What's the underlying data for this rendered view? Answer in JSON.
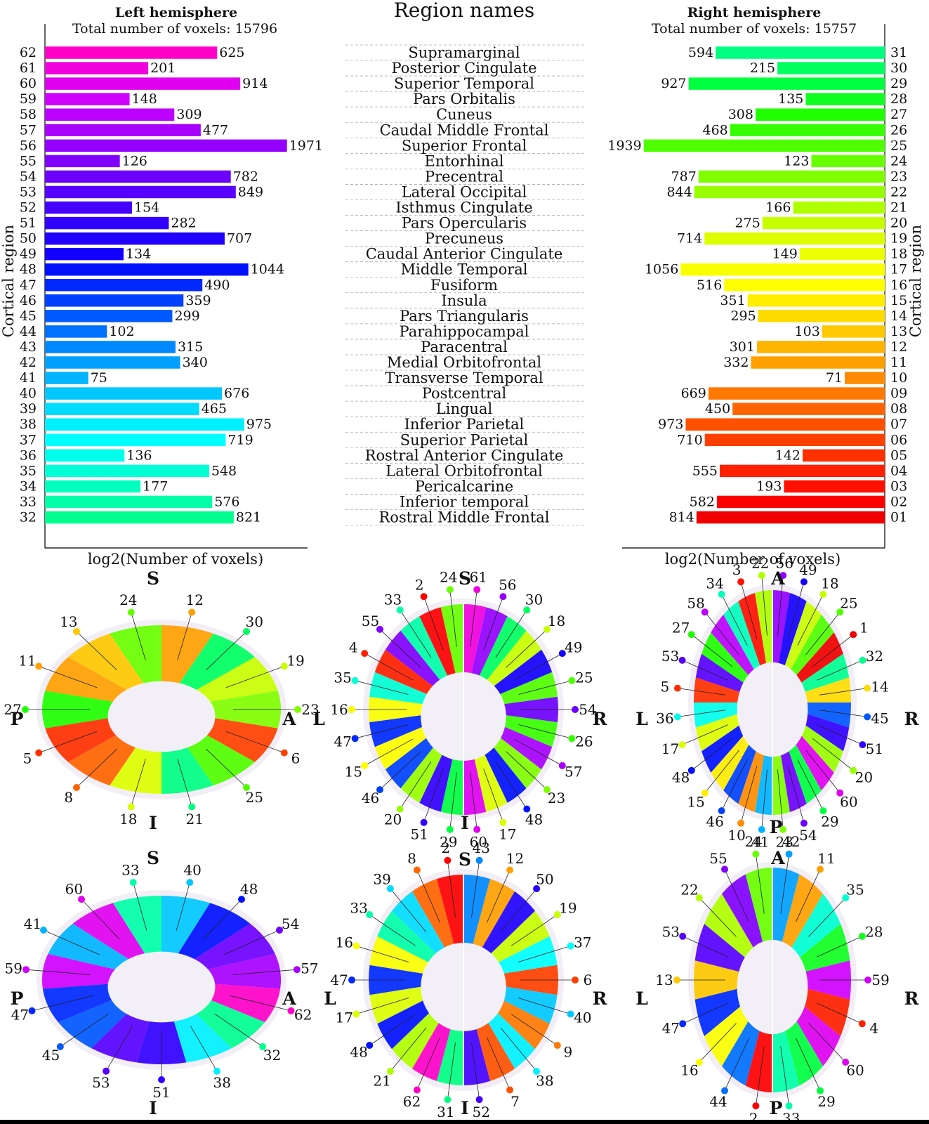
{
  "header": {
    "left_title": "Left hemisphere",
    "left_subtitle": "Total number of voxels: 15796",
    "middle_title": "Region names",
    "right_title": "Right hemisphere",
    "right_subtitle": "Total number of voxels: 15757"
  },
  "axes": {
    "left_y_label": "Cortical region",
    "right_y_label": "Cortical region",
    "left_x_label": "log2(Number of voxels)",
    "right_x_label": "log2(Number of voxels)"
  },
  "chart_data": [
    {
      "type": "bar",
      "orientation": "horizontal",
      "name": "Left hemisphere",
      "scale": "log2",
      "categories": [
        "62",
        "61",
        "60",
        "59",
        "58",
        "57",
        "56",
        "55",
        "54",
        "53",
        "52",
        "51",
        "50",
        "49",
        "48",
        "47",
        "46",
        "45",
        "44",
        "43",
        "42",
        "41",
        "40",
        "39",
        "38",
        "37",
        "36",
        "35",
        "34",
        "33",
        "32"
      ],
      "values": [
        625,
        201,
        914,
        148,
        309,
        477,
        1971,
        126,
        782,
        849,
        154,
        282,
        707,
        134,
        1044,
        490,
        359,
        299,
        102,
        315,
        340,
        75,
        676,
        465,
        975,
        719,
        136,
        548,
        177,
        576,
        821
      ],
      "colors": [
        "#ff00c8",
        "#f000dc",
        "#e000f0",
        "#d000ff",
        "#bc00ff",
        "#a800ff",
        "#9400ff",
        "#8000ff",
        "#6c00ff",
        "#5800ff",
        "#4400ff",
        "#3000ff",
        "#2000ff",
        "#1400ff",
        "#0010ff",
        "#0028ff",
        "#0040ff",
        "#0058ff",
        "#0070ff",
        "#0088ff",
        "#00a0ff",
        "#00b4ff",
        "#00c8ff",
        "#00dcff",
        "#00f0ff",
        "#00ffff",
        "#00ffea",
        "#00ffd4",
        "#00ffbe",
        "#00ffa8",
        "#00ff90"
      ]
    },
    {
      "type": "bar",
      "orientation": "horizontal",
      "name": "Right hemisphere",
      "scale": "log2",
      "categories": [
        "31",
        "30",
        "29",
        "28",
        "27",
        "26",
        "25",
        "24",
        "23",
        "22",
        "21",
        "20",
        "19",
        "18",
        "17",
        "16",
        "15",
        "14",
        "13",
        "12",
        "11",
        "10",
        "09",
        "08",
        "07",
        "06",
        "05",
        "04",
        "03",
        "02",
        "01"
      ],
      "values": [
        594,
        215,
        927,
        135,
        308,
        468,
        1939,
        123,
        787,
        844,
        166,
        275,
        714,
        149,
        1056,
        516,
        351,
        295,
        103,
        301,
        332,
        71,
        669,
        450,
        973,
        710,
        142,
        555,
        193,
        582,
        814
      ],
      "colors": [
        "#00ff80",
        "#00ff60",
        "#00ff40",
        "#10ff20",
        "#20ff00",
        "#38ff00",
        "#50ff00",
        "#68ff00",
        "#80ff00",
        "#98ff00",
        "#b0ff00",
        "#c8ff00",
        "#dcff00",
        "#eeff00",
        "#faff00",
        "#ffff00",
        "#ffee00",
        "#ffdc00",
        "#ffc800",
        "#ffb400",
        "#ffa000",
        "#ff8c00",
        "#ff7800",
        "#ff6400",
        "#ff5000",
        "#ff4000",
        "#ff3000",
        "#ff2000",
        "#ff1000",
        "#ff0000",
        "#f00000"
      ]
    }
  ],
  "region_names": [
    "Supramarginal",
    "Posterior Cingulate",
    "Superior Temporal",
    "Pars Orbitalis",
    "Cuneus",
    "Caudal Middle Frontal",
    "Superior Frontal",
    "Entorhinal",
    "Precentral",
    "Lateral Occipital",
    "Isthmus Cingulate",
    "Pars Opercularis",
    "Precuneus",
    "Caudal Anterior Cingulate",
    "Middle Temporal",
    "Fusiform",
    "Insula",
    "Pars Triangularis",
    "Parahippocampal",
    "Paracentral",
    "Medial Orbitofrontal",
    "Transverse Temporal",
    "Postcentral",
    "Lingual",
    "Inferior Parietal",
    "Superior Parietal",
    "Rostral Anterior Cingulate",
    "Lateral Orbitofrontal",
    "Pericalcarine",
    "Inferior temporal",
    "Rostral Middle Frontal"
  ],
  "brain_views": [
    {
      "directions": {
        "S": "S",
        "I": "I",
        "P": "P",
        "A": "A"
      },
      "labels": [
        "12",
        "30",
        "19",
        "23",
        "6",
        "25",
        "21",
        "18",
        "8",
        "5",
        "27",
        "11",
        "13",
        "24"
      ],
      "colors": [
        "#ffa000",
        "#00ff60",
        "#c8ff00",
        "#80ff00",
        "#ff4000",
        "#50ff00",
        "#00ff80",
        "#dcff00",
        "#ff6400",
        "#ff3000",
        "#20ff00",
        "#ffa000",
        "#ffc800",
        "#68ff00"
      ]
    },
    {
      "directions": {
        "S": "S",
        "I": "I",
        "L": "L",
        "R": "R"
      },
      "labels": [
        "61",
        "56",
        "30",
        "18",
        "49",
        "25",
        "54",
        "26",
        "57",
        "23",
        "48",
        "17",
        "60",
        "29",
        "51",
        "20",
        "46",
        "15",
        "47",
        "16",
        "35",
        "4",
        "55",
        "33",
        "2",
        "24"
      ],
      "colors": [
        "#f000dc",
        "#9400ff",
        "#00ff60",
        "#c8ff00",
        "#1400ff",
        "#50ff00",
        "#6c00ff",
        "#38ff00",
        "#a800ff",
        "#80ff00",
        "#0010ff",
        "#dcff00",
        "#e000f0",
        "#00ff40",
        "#3000ff",
        "#98ff00",
        "#0040ff",
        "#ffff00",
        "#0028ff",
        "#faff00",
        "#00ffd4",
        "#ff2000",
        "#8000ff",
        "#00ffa8",
        "#ff0000",
        "#68ff00"
      ]
    },
    {
      "directions": {
        "A": "A",
        "P": "P",
        "L": "L",
        "R": "R"
      },
      "labels": [
        "56",
        "49",
        "18",
        "25",
        "1",
        "32",
        "14",
        "45",
        "51",
        "20",
        "60",
        "29",
        "54",
        "23",
        "41",
        "10",
        "46",
        "15",
        "48",
        "17",
        "36",
        "5",
        "53",
        "27",
        "58",
        "34",
        "3",
        "22"
      ],
      "colors": [
        "#9400ff",
        "#1400ff",
        "#c8ff00",
        "#50ff00",
        "#f00000",
        "#00ff90",
        "#ffdc00",
        "#0058ff",
        "#3000ff",
        "#98ff00",
        "#e000f0",
        "#00ff40",
        "#6c00ff",
        "#80ff00",
        "#00b4ff",
        "#ff8c00",
        "#0040ff",
        "#ffee00",
        "#0010ff",
        "#dcff00",
        "#00ffea",
        "#ff3000",
        "#5800ff",
        "#20ff00",
        "#bc00ff",
        "#00ffbe",
        "#ff1000",
        "#b0ff00"
      ]
    },
    {
      "directions": {
        "S": "S",
        "I": "I",
        "P": "P",
        "A": "A"
      },
      "labels": [
        "40",
        "48",
        "54",
        "57",
        "62",
        "32",
        "38",
        "51",
        "53",
        "45",
        "47",
        "59",
        "41",
        "60",
        "33"
      ],
      "colors": [
        "#00c8ff",
        "#0010ff",
        "#6c00ff",
        "#a800ff",
        "#ff00c8",
        "#00ff90",
        "#00f0ff",
        "#3000ff",
        "#5800ff",
        "#0058ff",
        "#0028ff",
        "#d000ff",
        "#00b4ff",
        "#e000f0",
        "#00ffa8"
      ]
    },
    {
      "directions": {
        "S": "S",
        "I": "I",
        "L": "L",
        "R": "R"
      },
      "labels": [
        "43",
        "12",
        "50",
        "19",
        "37",
        "6",
        "40",
        "9",
        "38",
        "7",
        "52",
        "31",
        "62",
        "21",
        "48",
        "17",
        "47",
        "16",
        "33",
        "39",
        "8",
        "2"
      ],
      "colors": [
        "#0088ff",
        "#ffa000",
        "#2000ff",
        "#c8ff00",
        "#00ffff",
        "#ff4000",
        "#00c8ff",
        "#ff7800",
        "#00f0ff",
        "#ff5000",
        "#4400ff",
        "#00ff80",
        "#ff00c8",
        "#b0ff00",
        "#0010ff",
        "#dcff00",
        "#0028ff",
        "#faff00",
        "#00ffa8",
        "#00dcff",
        "#ff6400",
        "#ff0000"
      ]
    },
    {
      "directions": {
        "A": "A",
        "P": "P",
        "L": "L",
        "R": "R"
      },
      "labels": [
        "42",
        "11",
        "35",
        "28",
        "59",
        "4",
        "60",
        "29",
        "33",
        "2",
        "44",
        "16",
        "47",
        "13",
        "53",
        "22",
        "55",
        "24"
      ],
      "colors": [
        "#00a0ff",
        "#ffa000",
        "#00ffd4",
        "#10ff20",
        "#d000ff",
        "#ff2000",
        "#e000f0",
        "#00ff40",
        "#00ffa8",
        "#ff0000",
        "#0070ff",
        "#faff00",
        "#0028ff",
        "#ffc800",
        "#5800ff",
        "#b0ff00",
        "#8000ff",
        "#68ff00"
      ]
    }
  ]
}
